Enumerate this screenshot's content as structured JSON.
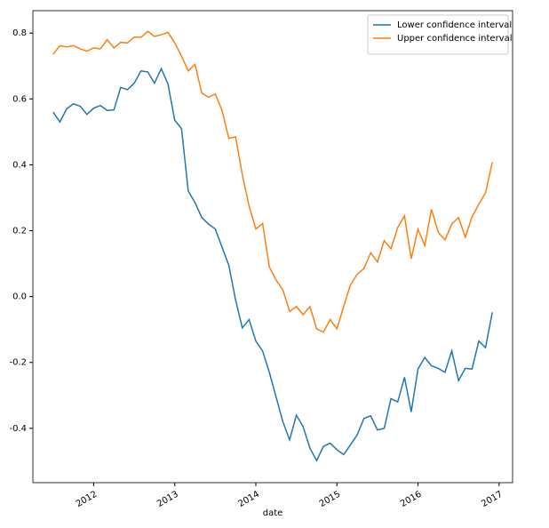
{
  "chart_data": {
    "type": "line",
    "xlabel": "date",
    "x": [
      "2011-07",
      "2011-08",
      "2011-09",
      "2011-10",
      "2011-11",
      "2011-12",
      "2012-01",
      "2012-02",
      "2012-03",
      "2012-04",
      "2012-05",
      "2012-06",
      "2012-07",
      "2012-08",
      "2012-09",
      "2012-10",
      "2012-11",
      "2012-12",
      "2013-01",
      "2013-02",
      "2013-03",
      "2013-04",
      "2013-05",
      "2013-06",
      "2013-07",
      "2013-08",
      "2013-09",
      "2013-10",
      "2013-11",
      "2013-12",
      "2014-01",
      "2014-02",
      "2014-03",
      "2014-04",
      "2014-05",
      "2014-06",
      "2014-07",
      "2014-08",
      "2014-09",
      "2014-10",
      "2014-11",
      "2014-12",
      "2015-01",
      "2015-02",
      "2015-03",
      "2015-04",
      "2015-05",
      "2015-06",
      "2015-07",
      "2015-08",
      "2015-09",
      "2015-10",
      "2015-11",
      "2015-12",
      "2016-01",
      "2016-02",
      "2016-03",
      "2016-04",
      "2016-05",
      "2016-06",
      "2016-07",
      "2016-08",
      "2016-09",
      "2016-10",
      "2016-11",
      "2016-12"
    ],
    "series": [
      {
        "name": "Lower confidence interval",
        "color": "#1f77b4",
        "values": [
          0.56,
          0.53,
          0.57,
          0.585,
          0.578,
          0.553,
          0.572,
          0.58,
          0.565,
          0.567,
          0.635,
          0.628,
          0.648,
          0.685,
          0.682,
          0.648,
          0.692,
          0.645,
          0.535,
          0.51,
          0.32,
          0.285,
          0.24,
          0.22,
          0.205,
          0.15,
          0.095,
          -0.01,
          -0.095,
          -0.07,
          -0.135,
          -0.165,
          -0.23,
          -0.305,
          -0.38,
          -0.435,
          -0.36,
          -0.395,
          -0.46,
          -0.498,
          -0.455,
          -0.445,
          -0.465,
          -0.48,
          -0.45,
          -0.42,
          -0.37,
          -0.362,
          -0.405,
          -0.4,
          -0.31,
          -0.32,
          -0.245,
          -0.35,
          -0.22,
          -0.185,
          -0.21,
          -0.218,
          -0.23,
          -0.165,
          -0.255,
          -0.218,
          -0.22,
          -0.135,
          -0.155,
          -0.048
        ]
      },
      {
        "name": "Upper confidence interval",
        "color": "#ff7f0e",
        "values": [
          0.735,
          0.762,
          0.758,
          0.762,
          0.752,
          0.745,
          0.755,
          0.752,
          0.78,
          0.755,
          0.772,
          0.77,
          0.788,
          0.787,
          0.805,
          0.79,
          0.795,
          0.802,
          0.77,
          0.73,
          0.685,
          0.705,
          0.618,
          0.605,
          0.615,
          0.565,
          0.48,
          0.485,
          0.37,
          0.275,
          0.205,
          0.222,
          0.09,
          0.05,
          0.02,
          -0.045,
          -0.03,
          -0.055,
          -0.03,
          -0.098,
          -0.108,
          -0.07,
          -0.098,
          -0.03,
          0.035,
          0.068,
          0.085,
          0.133,
          0.105,
          0.17,
          0.145,
          0.21,
          0.245,
          0.115,
          0.205,
          0.155,
          0.265,
          0.195,
          0.172,
          0.22,
          0.24,
          0.18,
          0.242,
          0.28,
          0.315,
          0.408
        ]
      }
    ],
    "xlim": [
      "2011-04",
      "2017-03"
    ],
    "xticks": [
      2012,
      2013,
      2014,
      2015,
      2016,
      2017
    ],
    "ylim": [
      -0.565,
      0.868
    ],
    "yticks": [
      0.8,
      0.6,
      0.4,
      0.2,
      {
        "value": 0,
        "label": "0.0"
      },
      -0.2,
      -0.4
    ],
    "grid": false,
    "legend": "upper right"
  }
}
